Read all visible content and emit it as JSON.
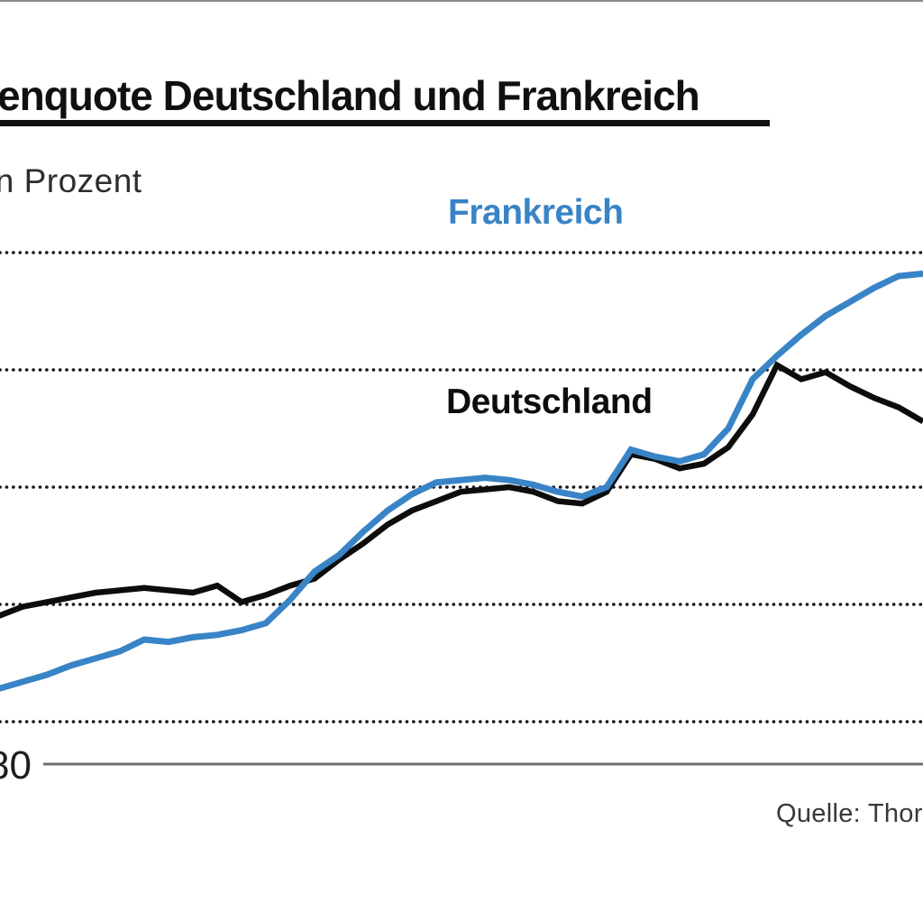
{
  "header": {
    "title": "enquote Deutschland und Frankreich",
    "subtitle": "in Prozent"
  },
  "series_labels": {
    "france": "Frankreich",
    "germany": "Deutschland"
  },
  "x_axis": {
    "visible_tick_label": "80"
  },
  "source": {
    "text": "Quelle: Thor"
  },
  "colors": {
    "france_blue": "#3884c6",
    "germany_black": "#0d0d0d",
    "grid_dot": "#161616",
    "axis_gray": "#6f6f6f"
  },
  "chart_data": {
    "type": "line",
    "title": "enquote Deutschland und Frankreich",
    "subtitle_unit": "in Prozent",
    "source": "Quelle: Thor",
    "grid": "dotted-horizontal",
    "legend": "inline-labels",
    "x_tick_label": {
      "text": "80",
      "year": 1980
    },
    "y_gridlines_percent": [
      35,
      40,
      45,
      50,
      55
    ],
    "ylim": [
      33.2,
      56.2
    ],
    "x": [
      1979,
      1980,
      1981,
      1982,
      1983,
      1984,
      1985,
      1986,
      1987,
      1988,
      1989,
      1990,
      1991,
      1992,
      1993,
      1994,
      1995,
      1996,
      1997,
      1998,
      1999,
      2000,
      2001,
      2002,
      2003,
      2004,
      2005,
      2006,
      2007,
      2008,
      2009,
      2010,
      2011,
      2012,
      2013,
      2014,
      2015,
      2016,
      2017
    ],
    "series": [
      {
        "name": "Frankreich",
        "color": "#3884c6",
        "values": [
          36.4,
          36.7,
          37.0,
          37.4,
          37.7,
          38.0,
          38.5,
          38.4,
          38.6,
          38.7,
          38.9,
          39.2,
          40.2,
          41.4,
          42.1,
          43.1,
          44.0,
          44.7,
          45.2,
          45.3,
          45.4,
          45.3,
          45.1,
          44.8,
          44.6,
          45.0,
          46.6,
          46.3,
          46.1,
          46.4,
          47.5,
          49.6,
          50.6,
          51.5,
          52.3,
          52.9,
          53.5,
          54.0,
          54.1
        ]
      },
      {
        "name": "Deutschland",
        "color": "#0d0d0d",
        "values": [
          39.5,
          39.9,
          40.1,
          40.3,
          40.5,
          40.6,
          40.7,
          40.6,
          40.5,
          40.8,
          40.1,
          40.4,
          40.8,
          41.1,
          41.9,
          42.6,
          43.4,
          44.0,
          44.4,
          44.8,
          44.9,
          45.0,
          44.8,
          44.4,
          44.3,
          44.8,
          46.4,
          46.2,
          45.8,
          46.0,
          46.7,
          48.1,
          50.2,
          49.6,
          49.9,
          49.3,
          48.8,
          48.4,
          47.8
        ]
      }
    ]
  }
}
